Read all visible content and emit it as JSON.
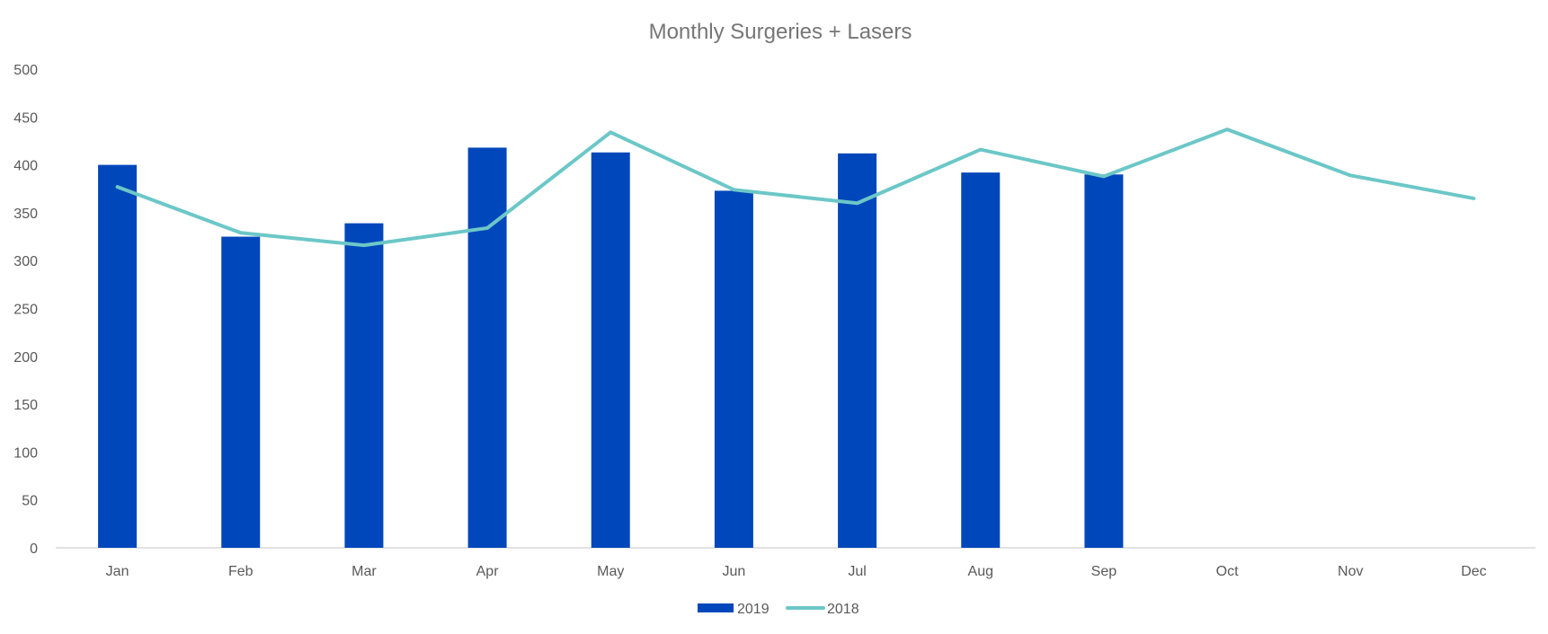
{
  "chart_data": {
    "type": "bar",
    "title": "Monthly Surgeries + Lasers",
    "categories": [
      "Jan",
      "Feb",
      "Mar",
      "Apr",
      "May",
      "Jun",
      "Jul",
      "Aug",
      "Sep",
      "Oct",
      "Nov",
      "Dec"
    ],
    "series": [
      {
        "name": "2019",
        "type": "bar",
        "color": "#0047BB",
        "values": [
          400,
          325,
          339,
          418,
          413,
          373,
          412,
          392,
          390,
          null,
          null,
          null
        ]
      },
      {
        "name": "2018",
        "type": "line",
        "color": "#6CC7C7",
        "values": [
          377,
          329,
          316,
          334,
          434,
          374,
          360,
          416,
          388,
          437,
          389,
          365
        ]
      }
    ],
    "ylim": [
      0,
      500
    ],
    "yticks": [
      0,
      50,
      100,
      150,
      200,
      250,
      300,
      350,
      400,
      450,
      500
    ],
    "grid": false,
    "legend": "bottom"
  }
}
